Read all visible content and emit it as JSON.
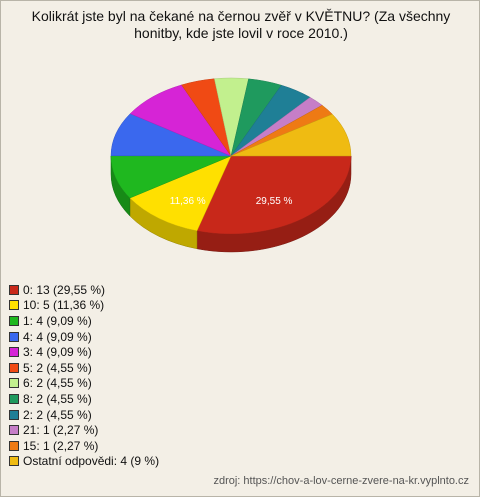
{
  "chart_data": {
    "type": "pie",
    "title": "Kolikrát jste byl na čekané na černou zvěř v KVĚTNU? (Za všechny honitby, kde jste lovil v roce 2010.)",
    "categories": [
      "0: 13 (29,55 %)",
      "10: 5 (11,36 %)",
      "1: 4 (9,09 %)",
      "4: 4 (9,09 %)",
      "3: 4 (9,09 %)",
      "5: 2 (4,55 %)",
      "6: 2 (4,55 %)",
      "8: 2 (4,55 %)",
      "2: 2 (4,55 %)",
      "21: 1 (2,27 %)",
      "15: 1 (2,27 %)",
      "Ostatní odpovědi: 4 (9 %)"
    ],
    "values": [
      29.55,
      11.36,
      9.09,
      9.09,
      9.09,
      4.55,
      4.55,
      4.55,
      4.55,
      2.27,
      2.27,
      9
    ],
    "value_labels": [
      "29,55 %",
      "11,36 %",
      null,
      null,
      null,
      null,
      null,
      null,
      null,
      null,
      null,
      null
    ],
    "colors": [
      "#c8281a",
      "#ffe000",
      "#1fb81f",
      "#3a68ee",
      "#d624d6",
      "#f04a14",
      "#c2f08e",
      "#1f9a5e",
      "#1f7f96",
      "#c67ec8",
      "#ee7a14",
      "#efbb12"
    ],
    "source": "zdroj: https://chov-a-lov-cerne-zvere-na-kr.vyplnto.cz"
  }
}
